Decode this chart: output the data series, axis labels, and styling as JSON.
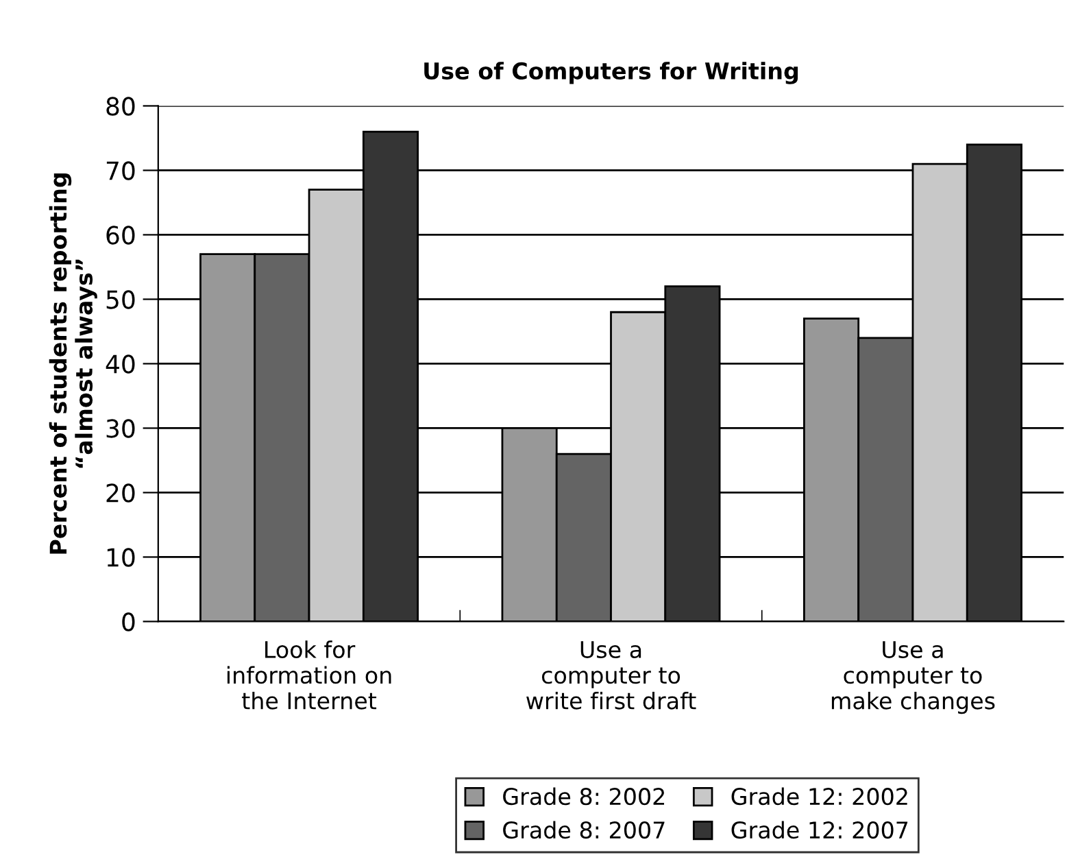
{
  "chart_data": {
    "type": "bar",
    "title": "Use of Computers for Writing",
    "ylabel": "Percent of students reporting\n“almost always”",
    "categories": [
      "Look for\ninformation on\nthe Internet",
      "Use a\ncomputer to\nwrite first draft",
      "Use a\ncomputer to\nmake changes"
    ],
    "series": [
      {
        "name": "Grade 8: 2002",
        "color": "#989898",
        "values": [
          57,
          30,
          47
        ]
      },
      {
        "name": "Grade 8: 2007",
        "color": "#646464",
        "values": [
          57,
          26,
          44
        ]
      },
      {
        "name": "Grade 12: 2002",
        "color": "#c8c8c8",
        "values": [
          67,
          48,
          71
        ]
      },
      {
        "name": "Grade 12: 2007",
        "color": "#353535",
        "values": [
          76,
          52,
          74
        ]
      }
    ],
    "ylim": [
      0,
      80
    ],
    "yticks": [
      0,
      10,
      20,
      30,
      40,
      50,
      60,
      70,
      80
    ],
    "grid": "y",
    "legend": "bottom"
  }
}
